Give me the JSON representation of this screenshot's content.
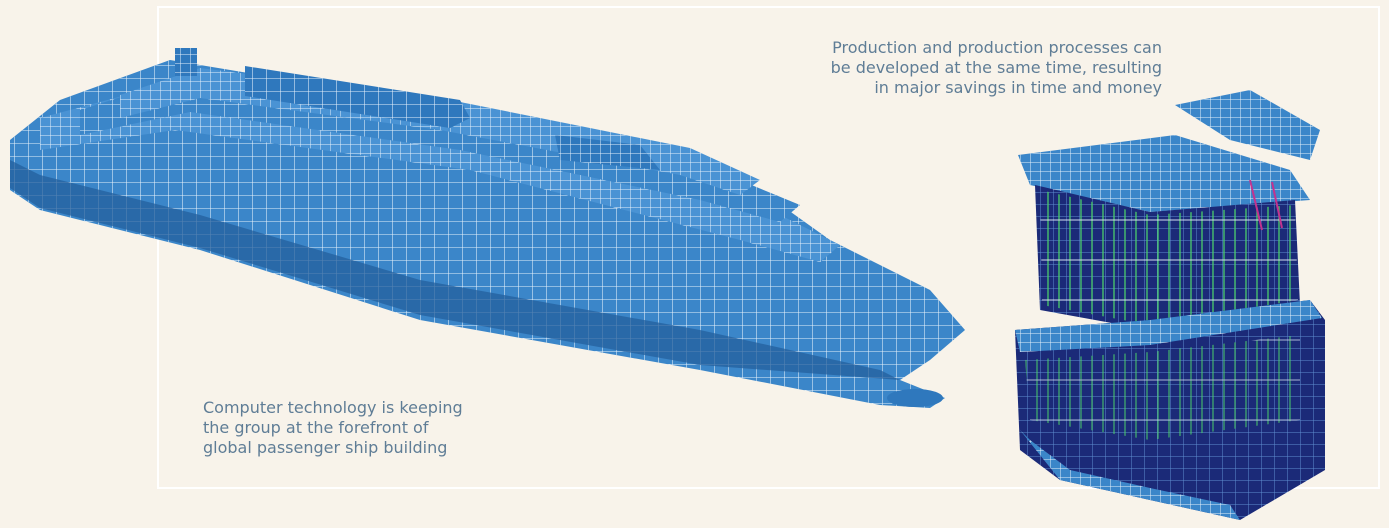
{
  "captions": {
    "production": [
      "Production and production processes can",
      "be developed at the same time, resulting",
      "in major savings in time and money"
    ],
    "technology": [
      "Computer technology is keeping",
      "the group at the forefront of",
      "global passenger ship building"
    ]
  },
  "colors": {
    "background": "#f8f3ea",
    "frame": "#ffffff",
    "hull": "#3b86c9",
    "hull_dark": "#245f9c",
    "deep_blue": "#1b2a78",
    "mesh": "#e6f1fb",
    "beam": "#4bd16a",
    "accent": "#c2338f",
    "caption": "#5f7d96"
  }
}
